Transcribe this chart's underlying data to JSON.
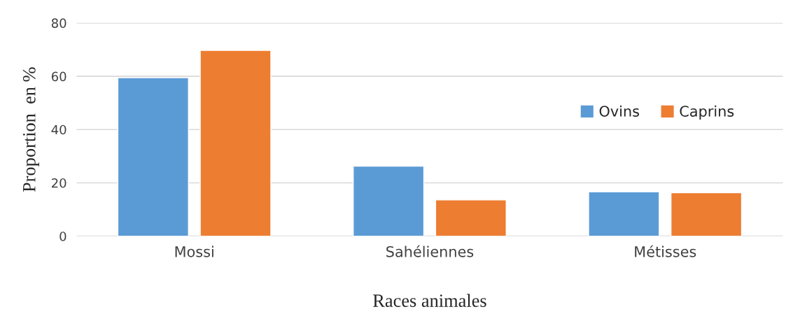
{
  "chart_data": {
    "type": "bar",
    "xlabel": "Races animales",
    "ylabel": "Proportion  en %",
    "categories": [
      "Mossi",
      "Sahéliennes",
      "Métisses"
    ],
    "series": [
      {
        "name": "Ovins",
        "color": "#5b9bd5",
        "values": [
          59.5,
          26.3,
          16.6
        ]
      },
      {
        "name": "Caprins",
        "color": "#ed7d31",
        "values": [
          69.7,
          13.6,
          16.3
        ]
      }
    ],
    "ylim": [
      0,
      80
    ],
    "yticks": [
      0,
      20,
      40,
      60,
      80
    ],
    "grid": "y",
    "legend": "right"
  }
}
